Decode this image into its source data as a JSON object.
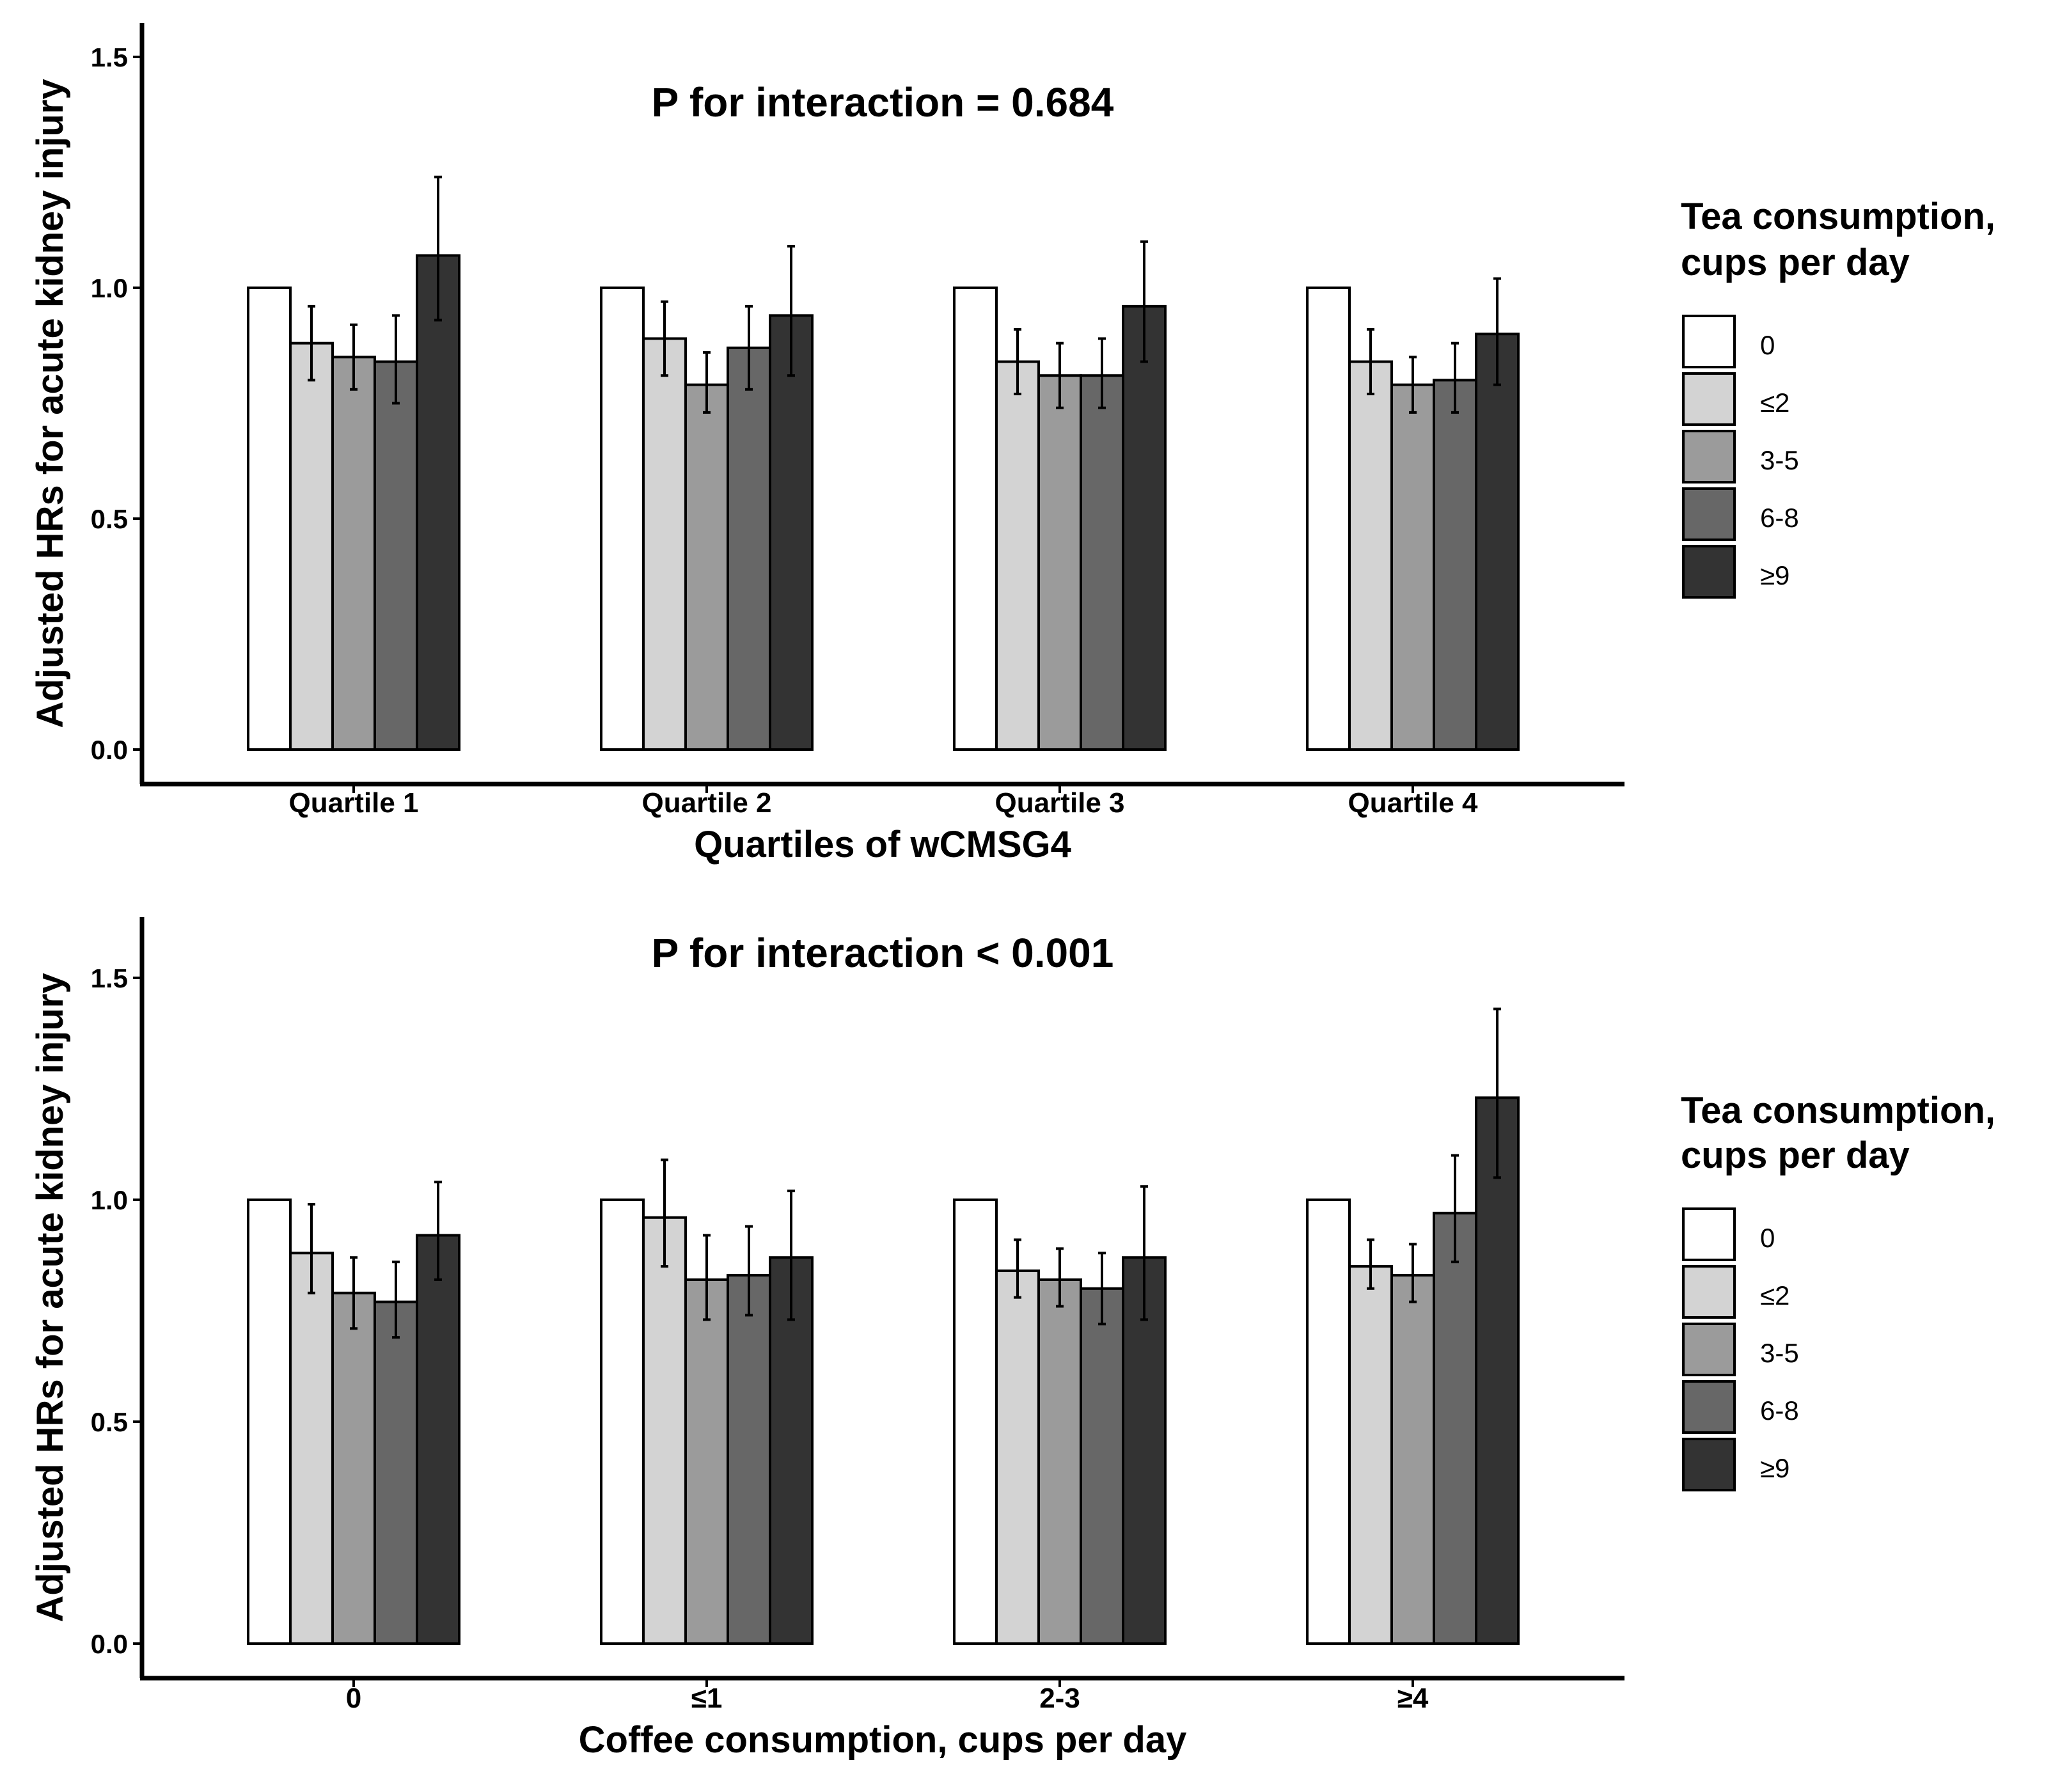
{
  "legend": {
    "title_line1": "Tea consumption,",
    "title_line2": " cups per day",
    "items": [
      "0",
      "≤2",
      "3-5",
      "6-8",
      "≥9"
    ],
    "colors": [
      "#ffffff",
      "#d3d3d3",
      "#9b9b9b",
      "#676767",
      "#333333"
    ]
  },
  "chart_data": [
    {
      "type": "bar",
      "title": "P for interaction = 0.684",
      "xlabel": "Quartiles of wCMSG4",
      "ylabel": "Adjusted HRs for acute kidney injury",
      "categories": [
        "Quartile 1",
        "Quartile 2",
        "Quartile 3",
        "Quartile 4"
      ],
      "yticks": [
        "0.0",
        "0.5",
        "1.0",
        "1.5"
      ],
      "ylim": [
        0,
        1.6
      ],
      "series": [
        {
          "name": "0",
          "values": [
            1.0,
            1.0,
            1.0,
            1.0
          ],
          "lower": [
            null,
            null,
            null,
            null
          ],
          "upper": [
            null,
            null,
            null,
            null
          ]
        },
        {
          "name": "≤2",
          "values": [
            0.88,
            0.89,
            0.84,
            0.84
          ],
          "lower": [
            0.8,
            0.81,
            0.77,
            0.77
          ],
          "upper": [
            0.96,
            0.97,
            0.91,
            0.91
          ]
        },
        {
          "name": "3-5",
          "values": [
            0.85,
            0.79,
            0.81,
            0.79
          ],
          "lower": [
            0.78,
            0.73,
            0.74,
            0.73
          ],
          "upper": [
            0.92,
            0.86,
            0.88,
            0.85
          ]
        },
        {
          "name": "6-8",
          "values": [
            0.84,
            0.87,
            0.81,
            0.8
          ],
          "lower": [
            0.75,
            0.78,
            0.74,
            0.73
          ],
          "upper": [
            0.94,
            0.96,
            0.89,
            0.88
          ]
        },
        {
          "name": "≥9",
          "values": [
            1.07,
            0.94,
            0.96,
            0.9
          ],
          "lower": [
            0.93,
            0.81,
            0.84,
            0.79
          ],
          "upper": [
            1.24,
            1.09,
            1.1,
            1.02
          ]
        }
      ]
    },
    {
      "type": "bar",
      "title": "P for interaction < 0.001",
      "xlabel": "Coffee consumption, cups per day",
      "ylabel": "Adjusted HRs for acute kidney injury",
      "categories": [
        "0",
        "≤1",
        "2-3",
        "≥4"
      ],
      "yticks": [
        "0.0",
        "0.5",
        "1.0",
        "1.5"
      ],
      "ylim": [
        0,
        1.6
      ],
      "series": [
        {
          "name": "0",
          "values": [
            1.0,
            1.0,
            1.0,
            1.0
          ],
          "lower": [
            null,
            null,
            null,
            null
          ],
          "upper": [
            null,
            null,
            null,
            null
          ]
        },
        {
          "name": "≤2",
          "values": [
            0.88,
            0.96,
            0.84,
            0.85
          ],
          "lower": [
            0.79,
            0.85,
            0.78,
            0.8
          ],
          "upper": [
            0.99,
            1.09,
            0.91,
            0.91
          ]
        },
        {
          "name": "3-5",
          "values": [
            0.79,
            0.82,
            0.82,
            0.83
          ],
          "lower": [
            0.71,
            0.73,
            0.76,
            0.77
          ],
          "upper": [
            0.87,
            0.92,
            0.89,
            0.9
          ]
        },
        {
          "name": "6-8",
          "values": [
            0.77,
            0.83,
            0.8,
            0.97
          ],
          "lower": [
            0.69,
            0.74,
            0.72,
            0.86
          ],
          "upper": [
            0.86,
            0.94,
            0.88,
            1.1
          ]
        },
        {
          "name": "≥9",
          "values": [
            0.92,
            0.87,
            0.87,
            1.23
          ],
          "lower": [
            0.82,
            0.73,
            0.73,
            1.05
          ],
          "upper": [
            1.04,
            1.02,
            1.03,
            1.43
          ]
        }
      ]
    }
  ]
}
